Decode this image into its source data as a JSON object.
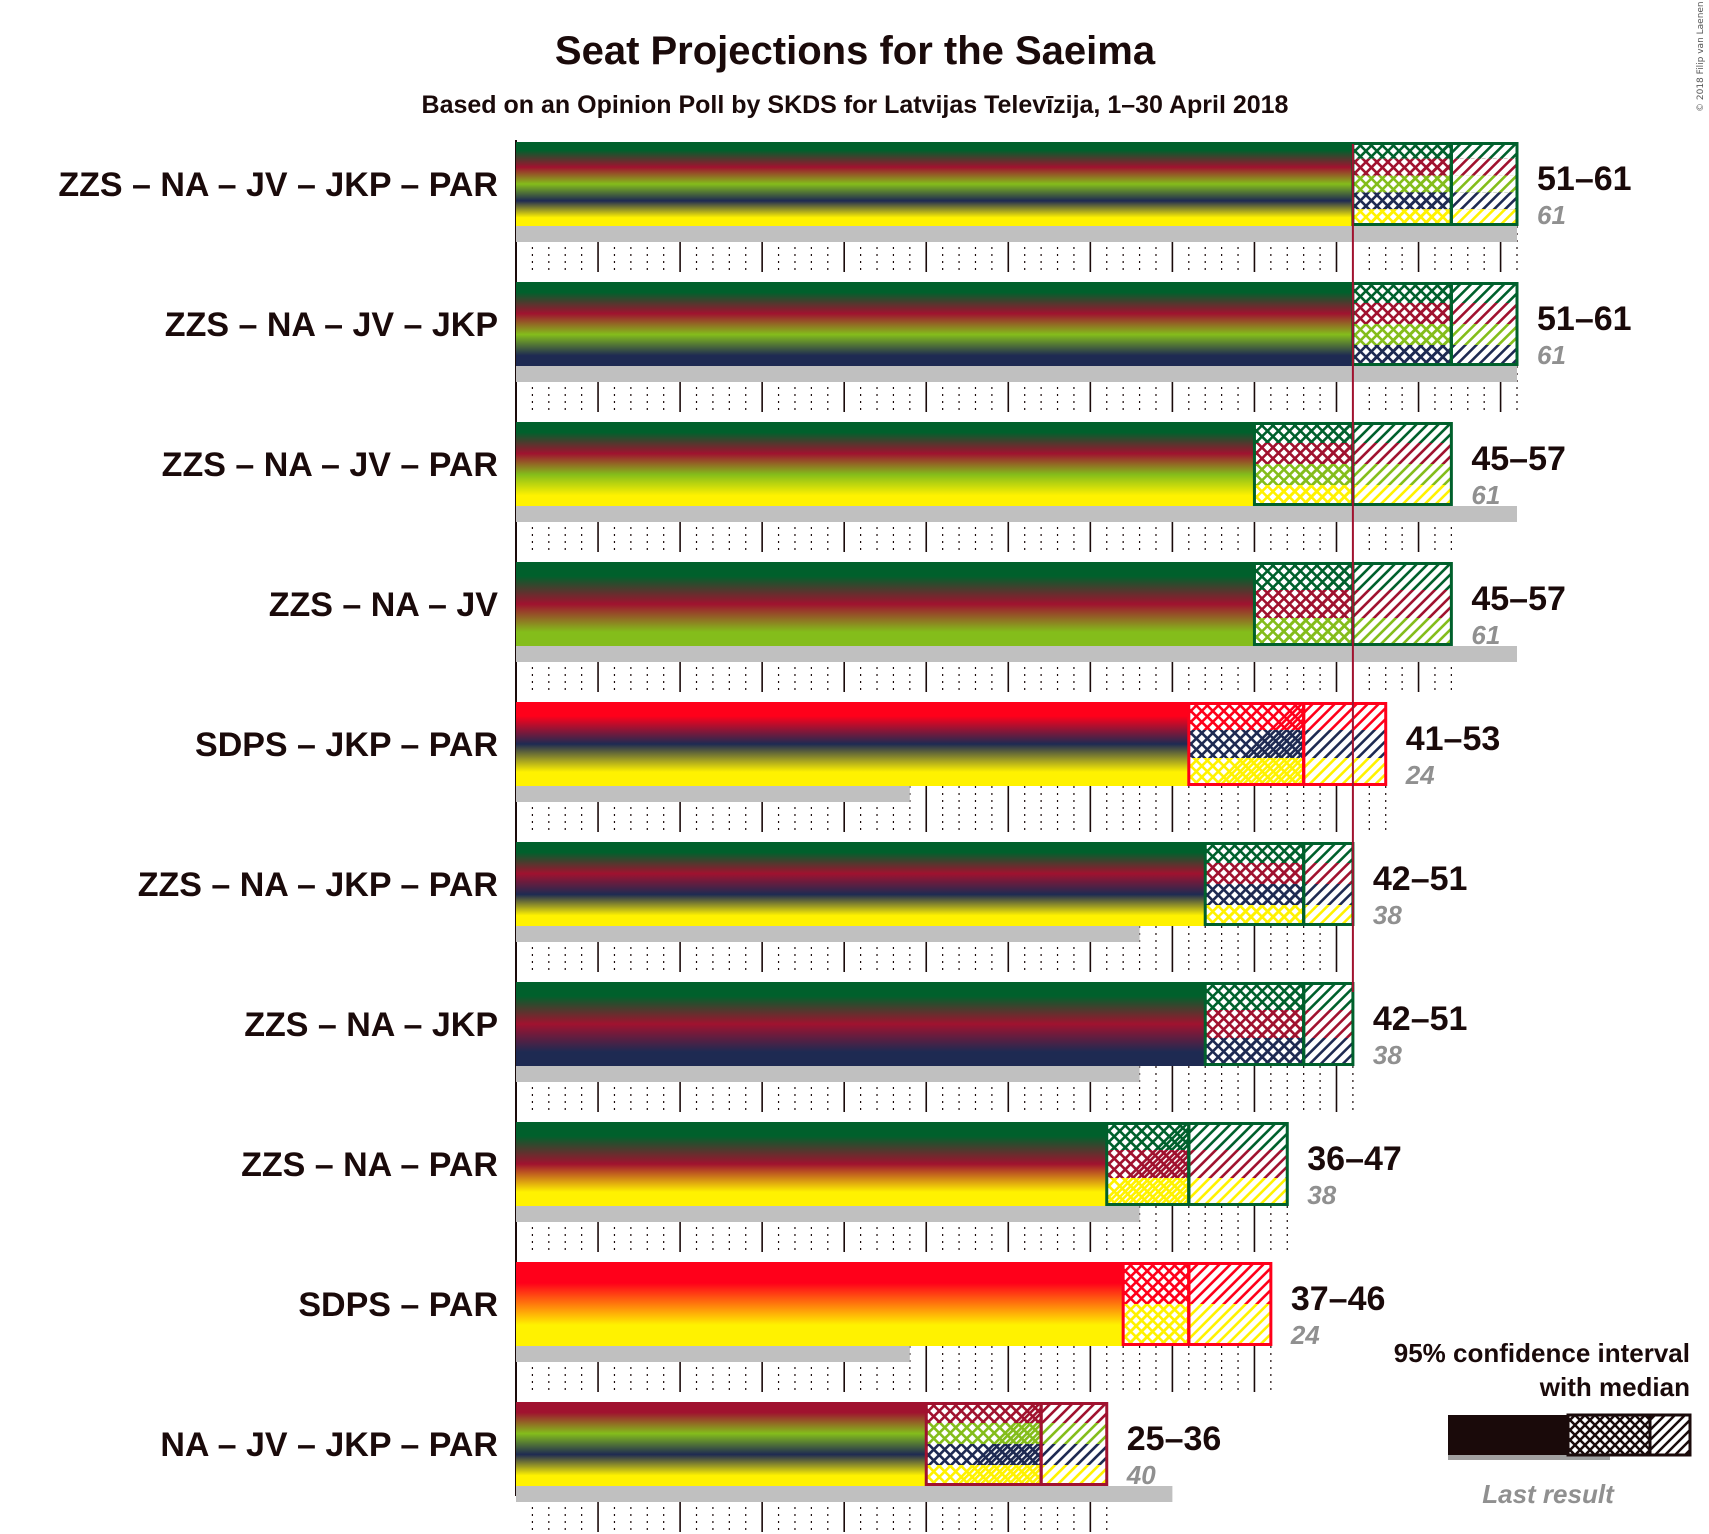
{
  "title": "Seat Projections for the Saeima",
  "subtitle": "Based on an Opinion Poll by SKDS for Latvijas Televīzija, 1–30 April 2018",
  "copyright": "© 2018 Filip van Laenen",
  "legend": {
    "line1": "95% confidence interval",
    "line2": "with median",
    "last_result": "Last result"
  },
  "colors": {
    "ZZS": "#00602C",
    "NA": "#A0122F",
    "JV": "#84BD1B",
    "JKP": "#1E2A52",
    "PAR": "#FFF200",
    "SDPS": "#FF001A",
    "last_result": "#C0C0C0",
    "majority_line": "#A0122F"
  },
  "chart_data": {
    "type": "bar",
    "title": "Seat Projections for the Saeima",
    "subtitle": "Based on an Opinion Poll by SKDS for Latvijas Televīzija, 1–30 April 2018",
    "x_range": [
      0,
      61
    ],
    "majority": 51,
    "coalitions": [
      {
        "label": "ZZS – NA – JV – JKP – PAR",
        "parties": [
          "ZZS",
          "NA",
          "JV",
          "JKP",
          "PAR"
        ],
        "low": 51,
        "median": 57,
        "high": 61,
        "range_label": "51–61",
        "last": 61,
        "last_label": "61"
      },
      {
        "label": "ZZS – NA – JV – JKP",
        "parties": [
          "ZZS",
          "NA",
          "JV",
          "JKP"
        ],
        "low": 51,
        "median": 57,
        "high": 61,
        "range_label": "51–61",
        "last": 61,
        "last_label": "61"
      },
      {
        "label": "ZZS – NA – JV – PAR",
        "parties": [
          "ZZS",
          "NA",
          "JV",
          "PAR"
        ],
        "low": 45,
        "median": 51,
        "high": 57,
        "range_label": "45–57",
        "last": 61,
        "last_label": "61"
      },
      {
        "label": "ZZS – NA – JV",
        "parties": [
          "ZZS",
          "NA",
          "JV"
        ],
        "low": 45,
        "median": 51,
        "high": 57,
        "range_label": "45–57",
        "last": 61,
        "last_label": "61"
      },
      {
        "label": "SDPS – JKP – PAR",
        "parties": [
          "SDPS",
          "JKP",
          "PAR"
        ],
        "low": 41,
        "median": 48,
        "high": 53,
        "range_label": "41–53",
        "last": 24,
        "last_label": "24"
      },
      {
        "label": "ZZS – NA – JKP – PAR",
        "parties": [
          "ZZS",
          "NA",
          "JKP",
          "PAR"
        ],
        "low": 42,
        "median": 48,
        "high": 51,
        "range_label": "42–51",
        "last": 38,
        "last_label": "38"
      },
      {
        "label": "ZZS – NA – JKP",
        "parties": [
          "ZZS",
          "NA",
          "JKP"
        ],
        "low": 42,
        "median": 48,
        "high": 51,
        "range_label": "42–51",
        "last": 38,
        "last_label": "38"
      },
      {
        "label": "ZZS – NA – PAR",
        "parties": [
          "ZZS",
          "NA",
          "PAR"
        ],
        "low": 36,
        "median": 41,
        "high": 47,
        "range_label": "36–47",
        "last": 38,
        "last_label": "38"
      },
      {
        "label": "SDPS – PAR",
        "parties": [
          "SDPS",
          "PAR"
        ],
        "low": 37,
        "median": 41,
        "high": 46,
        "range_label": "37–46",
        "last": 24,
        "last_label": "24"
      },
      {
        "label": "NA – JV – JKP – PAR",
        "parties": [
          "NA",
          "JV",
          "JKP",
          "PAR"
        ],
        "low": 25,
        "median": 32,
        "high": 36,
        "range_label": "25–36",
        "last": 40,
        "last_label": "40"
      }
    ]
  }
}
